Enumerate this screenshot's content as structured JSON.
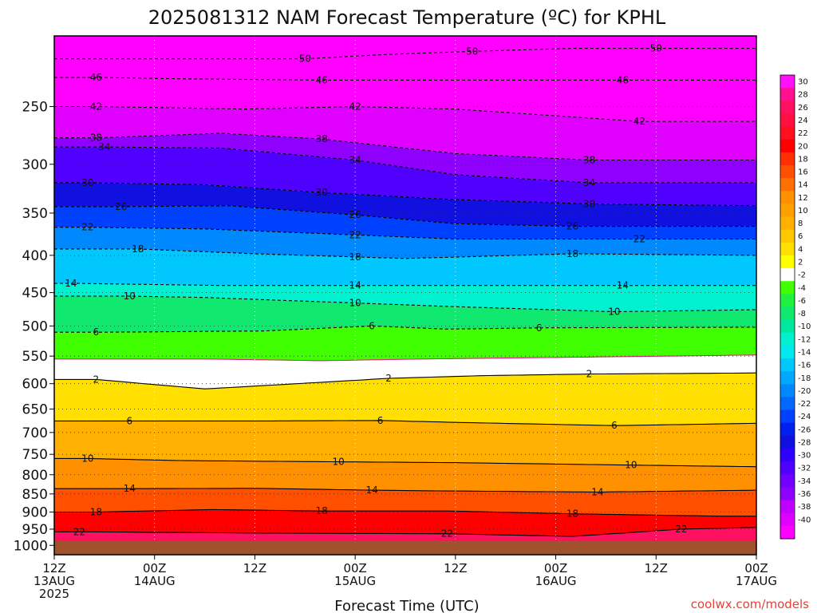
{
  "chart_data": {
    "type": "heatmap",
    "title": "2025081312 NAM Forecast Temperature (ºC) for KPHL",
    "xlabel": "Forecast Time (UTC)",
    "ylabel": "",
    "credit": "coolwx.com/models",
    "x_ticks": [
      {
        "hour": 0,
        "lines": [
          "12Z",
          "13AUG",
          "2025"
        ]
      },
      {
        "hour": 12,
        "lines": [
          "00Z",
          "14AUG"
        ]
      },
      {
        "hour": 24,
        "lines": [
          "12Z"
        ]
      },
      {
        "hour": 36,
        "lines": [
          "00Z",
          "15AUG"
        ]
      },
      {
        "hour": 48,
        "lines": [
          "12Z"
        ]
      },
      {
        "hour": 60,
        "lines": [
          "00Z",
          "16AUG"
        ]
      },
      {
        "hour": 72,
        "lines": [
          "12Z"
        ]
      },
      {
        "hour": 84,
        "lines": [
          "00Z",
          "17AUG"
        ]
      }
    ],
    "xlim_hours": [
      0,
      84
    ],
    "y_ticks": [
      250,
      300,
      350,
      400,
      450,
      500,
      550,
      600,
      650,
      700,
      750,
      800,
      850,
      900,
      950,
      1000
    ],
    "ylim": [
      200,
      1030
    ],
    "y_scale": "log",
    "y_reversed": true,
    "grid": "dotted",
    "colorbar": {
      "labels": [
        30,
        28,
        26,
        24,
        22,
        20,
        18,
        16,
        14,
        12,
        10,
        8,
        6,
        4,
        2,
        -2,
        -4,
        -6,
        -8,
        -10,
        -12,
        -14,
        -16,
        -18,
        -20,
        -22,
        -24,
        -26,
        -28,
        -30,
        -32,
        -34,
        -36,
        -38,
        -40
      ],
      "colors": [
        "#ff10ff",
        "#ff1090",
        "#ff1060",
        "#ff1040",
        "#ff1020",
        "#ff0000",
        "#ff3000",
        "#ff5000",
        "#ff7000",
        "#ff9000",
        "#ffa000",
        "#ffb000",
        "#ffc800",
        "#ffe000",
        "#ffff00",
        "#ffffff",
        "#40ff00",
        "#20f040",
        "#10e870",
        "#00e8a0",
        "#00f0d0",
        "#00e8f0",
        "#00c8ff",
        "#00a8ff",
        "#0088ff",
        "#0068ff",
        "#0040ff",
        "#0020f0",
        "#1010e0",
        "#3000ff",
        "#5000ff",
        "#7000ff",
        "#9000ff",
        "#c000ff",
        "#e000ff",
        "#ff00ff"
      ],
      "placement": "right"
    },
    "isotherm_labels": [
      {
        "hour": 0,
        "levels": [
          1000,
          950,
          900,
          850,
          800,
          750,
          700,
          650,
          600,
          550,
          500,
          450,
          400,
          350,
          300,
          250,
          220
        ]
      },
      {
        "hour": 12,
        "levels": [
          1000,
          952,
          902,
          855,
          805,
          758,
          708,
          660,
          610,
          560,
          510,
          460,
          412,
          360,
          310,
          262,
          232
        ]
      },
      {
        "hour": 24,
        "levels": [
          1000,
          955,
          905,
          860,
          810,
          760,
          712,
          665,
          615,
          565,
          515,
          465,
          418,
          365,
          315,
          268,
          236
        ]
      },
      {
        "hour": 36,
        "levels": [
          1000,
          960,
          908,
          862,
          812,
          762,
          715,
          670,
          620,
          570,
          518,
          468,
          420,
          368,
          318,
          272,
          238
        ]
      },
      {
        "hour": 48,
        "levels": [
          1000,
          962,
          910,
          865,
          815,
          765,
          718,
          672,
          622,
          572,
          520,
          470,
          422,
          370,
          320,
          275,
          240
        ]
      },
      {
        "hour": 60,
        "levels": [
          1000,
          965,
          912,
          868,
          818,
          768,
          720,
          675,
          625,
          575,
          522,
          472,
          425,
          372,
          322,
          278,
          242
        ]
      },
      {
        "hour": 72,
        "levels": [
          1000,
          968,
          915,
          870,
          820,
          770,
          722,
          678,
          628,
          578,
          525,
          475,
          428,
          375,
          325,
          280,
          244
        ]
      },
      {
        "hour": 84,
        "levels": [
          1000,
          970,
          918,
          872,
          822,
          772,
          725,
          680,
          630,
          580,
          528,
          478,
          430,
          378,
          328,
          282,
          246
        ]
      }
    ],
    "isotherms": [
      {
        "value": 22,
        "points": [
          [
            3,
            958
          ],
          [
            25,
            962
          ],
          [
            47,
            964
          ],
          [
            62,
            972
          ],
          [
            75,
            950
          ],
          [
            84,
            945
          ]
        ]
      },
      {
        "value": 18,
        "points": [
          [
            5,
            900
          ],
          [
            19,
            893
          ],
          [
            32,
            897
          ],
          [
            47,
            897
          ],
          [
            62,
            905
          ],
          [
            80,
            912
          ]
        ]
      },
      {
        "value": 14,
        "points": [
          [
            9,
            836
          ],
          [
            24,
            835
          ],
          [
            38,
            840
          ],
          [
            47,
            842
          ],
          [
            65,
            845
          ],
          [
            84,
            840
          ]
        ]
      },
      {
        "value": 10,
        "points": [
          [
            4,
            760
          ],
          [
            15,
            765
          ],
          [
            34,
            768
          ],
          [
            48,
            770
          ],
          [
            69,
            776
          ],
          [
            84,
            780
          ]
        ]
      },
      {
        "value": 6,
        "points": [
          [
            9,
            675
          ],
          [
            25,
            675
          ],
          [
            39,
            674
          ],
          [
            48,
            678
          ],
          [
            67,
            685
          ],
          [
            84,
            680
          ]
        ]
      },
      {
        "value": 2,
        "points": [
          [
            5,
            592
          ],
          [
            18,
            610
          ],
          [
            40,
            590
          ],
          [
            51,
            585
          ],
          [
            64,
            582
          ],
          [
            84,
            580
          ]
        ]
      },
      {
        "value": -2,
        "points": [
          [
            9,
            555
          ],
          [
            18,
            555
          ],
          [
            32,
            558
          ],
          [
            44,
            555
          ],
          [
            62,
            552
          ],
          [
            84,
            548
          ]
        ]
      },
      {
        "value": -6,
        "points": [
          [
            5,
            510
          ],
          [
            25,
            508
          ],
          [
            38,
            500
          ],
          [
            47,
            505
          ],
          [
            58,
            503
          ],
          [
            84,
            502
          ]
        ]
      },
      {
        "value": -10,
        "points": [
          [
            9,
            455
          ],
          [
            18,
            457
          ],
          [
            36,
            465
          ],
          [
            47,
            470
          ],
          [
            67,
            478
          ],
          [
            84,
            475
          ]
        ]
      },
      {
        "value": -14,
        "points": [
          [
            2,
            437
          ],
          [
            20,
            440
          ],
          [
            36,
            440
          ],
          [
            48,
            440
          ],
          [
            68,
            440
          ],
          [
            84,
            440
          ]
        ]
      },
      {
        "value": -18,
        "points": [
          [
            10,
            392
          ],
          [
            24,
            398
          ],
          [
            36,
            402
          ],
          [
            42,
            404
          ],
          [
            62,
            398
          ],
          [
            84,
            400
          ]
        ]
      },
      {
        "value": -22,
        "points": [
          [
            4,
            366
          ],
          [
            18,
            368
          ],
          [
            36,
            375
          ],
          [
            48,
            380
          ],
          [
            70,
            380
          ],
          [
            84,
            380
          ]
        ]
      },
      {
        "value": -26,
        "points": [
          [
            8,
            343
          ],
          [
            21,
            342
          ],
          [
            36,
            352
          ],
          [
            48,
            362
          ],
          [
            62,
            365
          ],
          [
            84,
            365
          ]
        ]
      },
      {
        "value": -30,
        "points": [
          [
            4,
            318
          ],
          [
            18,
            320
          ],
          [
            32,
            328
          ],
          [
            47,
            335
          ],
          [
            64,
            340
          ],
          [
            84,
            342
          ]
        ]
      },
      {
        "value": -34,
        "points": [
          [
            6,
            284
          ],
          [
            20,
            285
          ],
          [
            36,
            296
          ],
          [
            48,
            310
          ],
          [
            64,
            318
          ],
          [
            84,
            318
          ]
        ]
      },
      {
        "value": -38,
        "points": [
          [
            5,
            276
          ],
          [
            20,
            272
          ],
          [
            32,
            277
          ],
          [
            48,
            290
          ],
          [
            64,
            296
          ],
          [
            84,
            296
          ]
        ]
      },
      {
        "value": -42,
        "points": [
          [
            5,
            250
          ],
          [
            23,
            252
          ],
          [
            36,
            250
          ],
          [
            48,
            252
          ],
          [
            70,
            262
          ],
          [
            84,
            262
          ]
        ]
      },
      {
        "value": -46,
        "points": [
          [
            5,
            228
          ],
          [
            15,
            229
          ],
          [
            32,
            230
          ],
          [
            46,
            230
          ],
          [
            68,
            230
          ],
          [
            84,
            230
          ]
        ]
      },
      {
        "value": -50,
        "points": [
          [
            30,
            215
          ],
          [
            40,
            212
          ],
          [
            50,
            210
          ],
          [
            62,
            208
          ],
          [
            72,
            208
          ],
          [
            84,
            208
          ]
        ]
      }
    ]
  }
}
